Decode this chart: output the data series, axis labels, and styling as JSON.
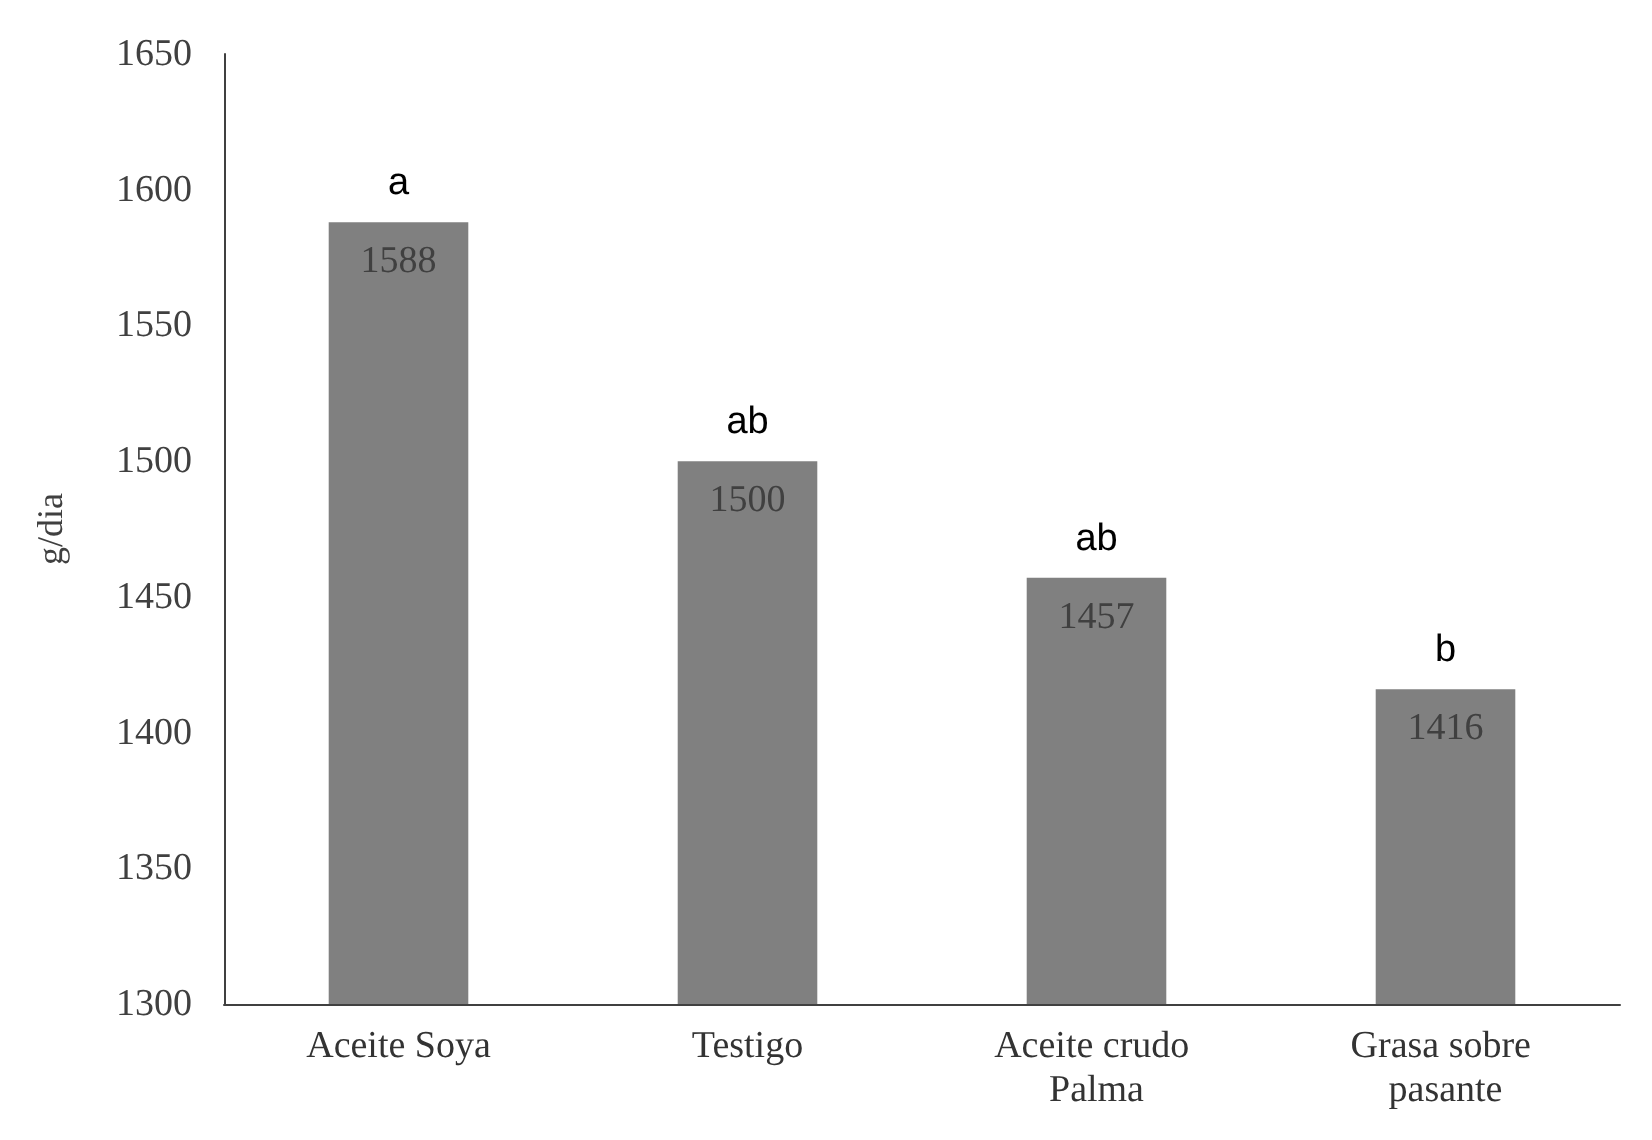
{
  "chart_data": {
    "type": "bar",
    "ylabel": "g/dia",
    "categories": [
      "Aceite Soya",
      "Testigo",
      "Aceite crudo Palma",
      "Grasa sobre pasante"
    ],
    "values": [
      1588,
      1500,
      1457,
      1416
    ],
    "color": "#808080",
    "ylim": [
      1300,
      1650
    ],
    "yticks": [
      1300,
      1350,
      1400,
      1450,
      1500,
      1550,
      1600,
      1650
    ],
    "grid": false,
    "data_labels": true,
    "annotations": [
      {
        "text": "a",
        "x": "Aceite Soya",
        "y": 1588
      },
      {
        "text": "ab",
        "x": "Testigo",
        "y": 1500
      },
      {
        "text": "ab",
        "x": "Aceite crudo Palma",
        "y": 1457
      },
      {
        "text": "b",
        "x": "Grasa sobre pasante",
        "y": 1416
      }
    ]
  }
}
